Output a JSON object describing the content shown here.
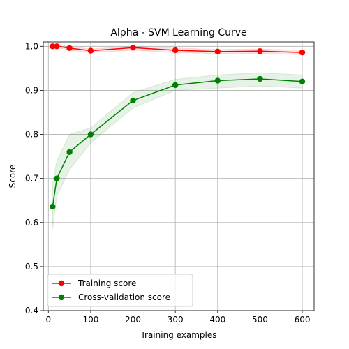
{
  "chart_data": {
    "type": "line",
    "title": "Alpha - SVM Learning Curve",
    "xlabel": "Training examples",
    "ylabel": "Score",
    "xlim": [
      -12,
      628
    ],
    "ylim": [
      0.4,
      1.01
    ],
    "xticks": [
      0,
      100,
      200,
      300,
      400,
      500,
      600
    ],
    "xtick_labels": [
      "0",
      "100",
      "200",
      "300",
      "400",
      "500",
      "600"
    ],
    "yticks": [
      0.4,
      0.5,
      0.6,
      0.7,
      0.8,
      0.9,
      1.0
    ],
    "ytick_labels": [
      "0.4",
      "0.5",
      "0.6",
      "0.7",
      "0.8",
      "0.9",
      "1.0"
    ],
    "grid": true,
    "legend_position": "lower-left",
    "series": [
      {
        "name": "Training score",
        "color": "#ff0000",
        "x": [
          10,
          20,
          50,
          100,
          200,
          300,
          400,
          500,
          600
        ],
        "y": [
          1.0,
          1.0,
          0.996,
          0.99,
          0.997,
          0.991,
          0.988,
          0.989,
          0.986
        ],
        "band_lower": [
          0.998,
          0.998,
          0.991,
          0.986,
          0.991,
          0.986,
          0.983,
          0.984,
          0.981
        ],
        "band_upper": [
          1.0,
          1.0,
          1.0,
          0.994,
          1.0,
          0.996,
          0.993,
          0.994,
          0.991
        ]
      },
      {
        "name": "Cross-validation score",
        "color": "#008000",
        "x": [
          10,
          20,
          50,
          100,
          200,
          300,
          400,
          500,
          600
        ],
        "y": [
          0.636,
          0.7,
          0.76,
          0.8,
          0.877,
          0.912,
          0.922,
          0.926,
          0.92
        ],
        "band_lower": [
          0.585,
          0.66,
          0.72,
          0.78,
          0.86,
          0.9,
          0.905,
          0.91,
          0.905
        ],
        "band_upper": [
          0.69,
          0.74,
          0.8,
          0.815,
          0.895,
          0.925,
          0.935,
          0.94,
          0.935
        ]
      }
    ]
  }
}
